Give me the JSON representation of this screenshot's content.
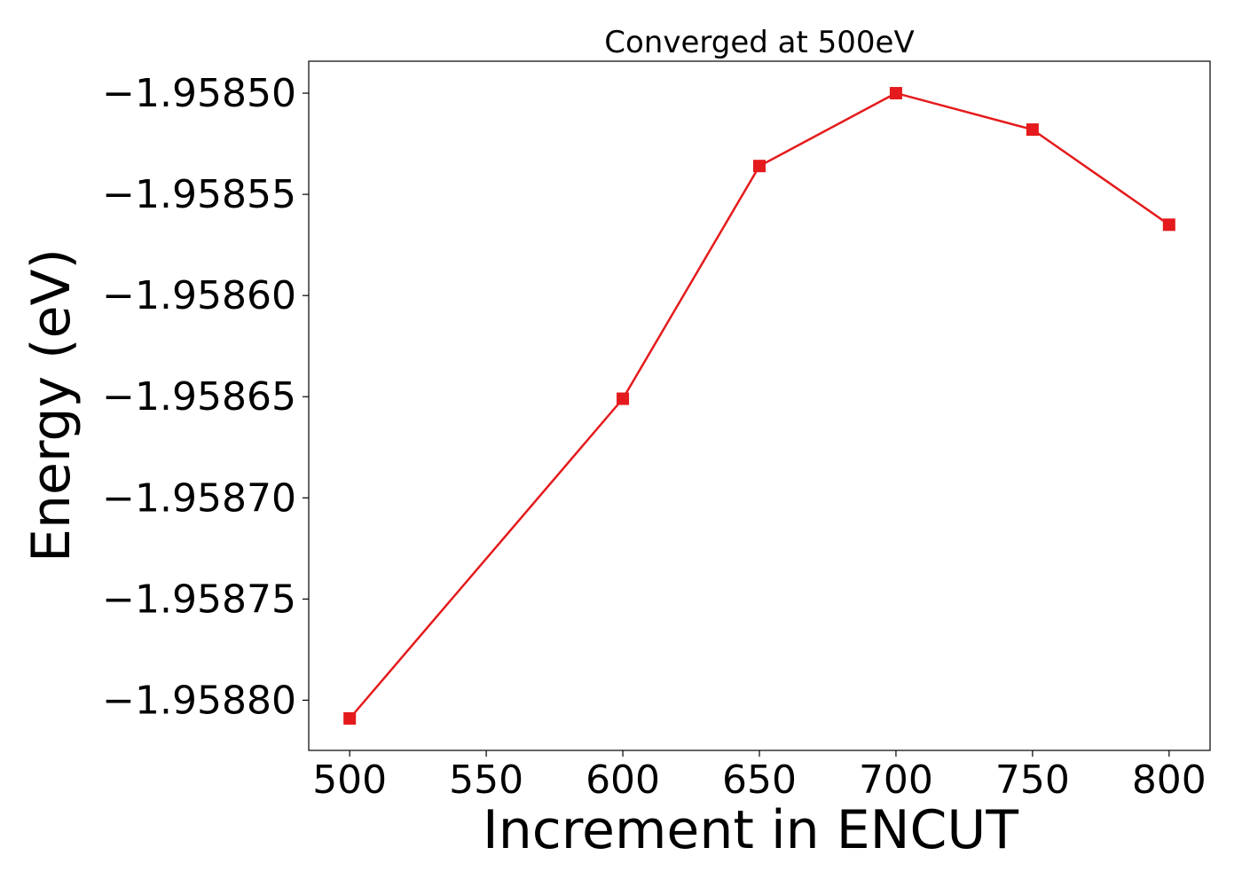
{
  "chart_data": {
    "type": "line",
    "title": "Converged at 500eV",
    "xlabel": "Increment in ENCUT",
    "ylabel": "Energy (eV)",
    "x": [
      500,
      600,
      650,
      700,
      750,
      800
    ],
    "series": [
      {
        "values": [
          -1.958809,
          -1.958651,
          -1.958536,
          -1.9585,
          -1.958518,
          -1.958565
        ],
        "color": "#e41a1c",
        "marker": "square"
      }
    ],
    "xlim": [
      485,
      815
    ],
    "ylim": [
      -1.9588248,
      -1.9584842
    ],
    "x_ticks": [
      {
        "value": 500,
        "label": "500"
      },
      {
        "value": 550,
        "label": "550"
      },
      {
        "value": 600,
        "label": "600"
      },
      {
        "value": 650,
        "label": "650"
      },
      {
        "value": 700,
        "label": "700"
      },
      {
        "value": 750,
        "label": "750"
      },
      {
        "value": 800,
        "label": "800"
      }
    ],
    "y_ticks": [
      {
        "value": -1.9585,
        "label": "−1.95850"
      },
      {
        "value": -1.95855,
        "label": "−1.95855"
      },
      {
        "value": -1.9586,
        "label": "−1.95860"
      },
      {
        "value": -1.95865,
        "label": "−1.95865"
      },
      {
        "value": -1.9587,
        "label": "−1.95870"
      },
      {
        "value": -1.95875,
        "label": "−1.95875"
      },
      {
        "value": -1.9588,
        "label": "−1.95880"
      }
    ],
    "grid": false,
    "legend": "none"
  }
}
